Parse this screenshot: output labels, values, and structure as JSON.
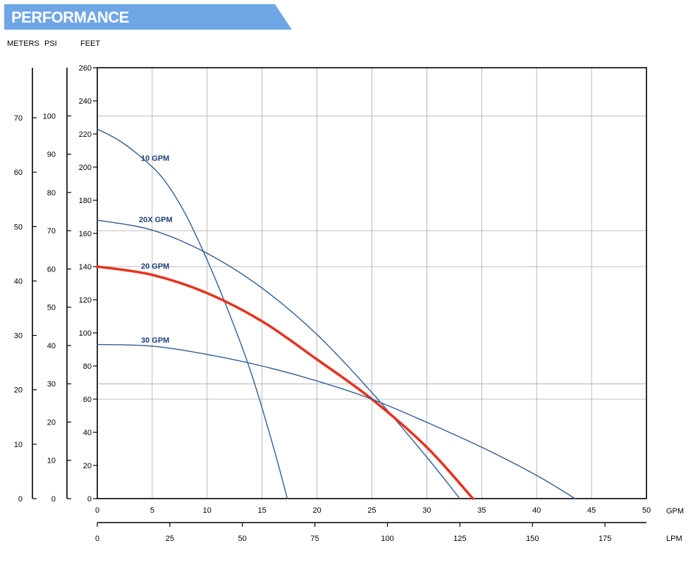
{
  "header": {
    "title": "PERFORMANCE"
  },
  "axes_labels": {
    "meters": "METERS",
    "psi": "PSI",
    "feet": "FEET",
    "gpm": "GPM",
    "lpm": "LPM"
  },
  "colors": {
    "banner": "#6fa6e6",
    "banner_text": "#ffffff",
    "curve_blue": "#2f5d95",
    "curve_red": "#e8321e",
    "label_blue": "#1f3f7a",
    "grid": "#a8a8a8",
    "axis": "#000000"
  },
  "chart_data": {
    "type": "line",
    "x_axis": {
      "label": "GPM",
      "range": [
        0,
        50
      ],
      "ticks": [
        0,
        5,
        10,
        15,
        20,
        25,
        30,
        35,
        40,
        45,
        50
      ]
    },
    "x2_axis": {
      "label": "LPM",
      "range": [
        0,
        189.3
      ],
      "ticks": [
        0,
        25,
        50,
        75,
        100,
        125,
        150,
        175
      ]
    },
    "y_axis": {
      "label": "FEET",
      "range": [
        0,
        260
      ],
      "ticks": [
        0,
        20,
        40,
        60,
        80,
        100,
        120,
        140,
        160,
        180,
        200,
        220,
        240,
        260
      ]
    },
    "y2_axis": {
      "label": "PSI",
      "range": [
        0,
        112.6
      ],
      "ticks": [
        0,
        10,
        20,
        30,
        40,
        50,
        60,
        70,
        80,
        90,
        100
      ]
    },
    "y3_axis": {
      "label": "METERS",
      "range": [
        0,
        79.2
      ],
      "ticks": [
        0,
        10,
        20,
        30,
        40,
        50,
        60,
        70
      ]
    },
    "grid": true,
    "series": [
      {
        "name": "10 GPM",
        "color": "#2f5d95",
        "points": [
          [
            0,
            223
          ],
          [
            2,
            216
          ],
          [
            4,
            206
          ],
          [
            6,
            193
          ],
          [
            8,
            172
          ],
          [
            10,
            144
          ],
          [
            12,
            112
          ],
          [
            14,
            76
          ],
          [
            16,
            32
          ],
          [
            17.3,
            0
          ]
        ]
      },
      {
        "name": "20X GPM",
        "color": "#2f5d95",
        "points": [
          [
            0,
            168
          ],
          [
            5,
            162
          ],
          [
            10,
            148
          ],
          [
            15,
            127
          ],
          [
            20,
            99
          ],
          [
            25,
            64
          ],
          [
            30,
            25
          ],
          [
            33,
            0
          ]
        ]
      },
      {
        "name": "20 GPM",
        "color": "#e8321e",
        "points": [
          [
            0,
            140
          ],
          [
            5,
            135
          ],
          [
            10,
            124
          ],
          [
            15,
            107
          ],
          [
            20,
            84
          ],
          [
            25,
            60
          ],
          [
            30,
            31
          ],
          [
            34.2,
            0
          ]
        ]
      },
      {
        "name": "30 GPM",
        "color": "#2f5d95",
        "points": [
          [
            0,
            93
          ],
          [
            5,
            92
          ],
          [
            10,
            87
          ],
          [
            15,
            80
          ],
          [
            20,
            71
          ],
          [
            25,
            60
          ],
          [
            30,
            46
          ],
          [
            35,
            31
          ],
          [
            40,
            14
          ],
          [
            43.5,
            0
          ]
        ]
      }
    ]
  }
}
